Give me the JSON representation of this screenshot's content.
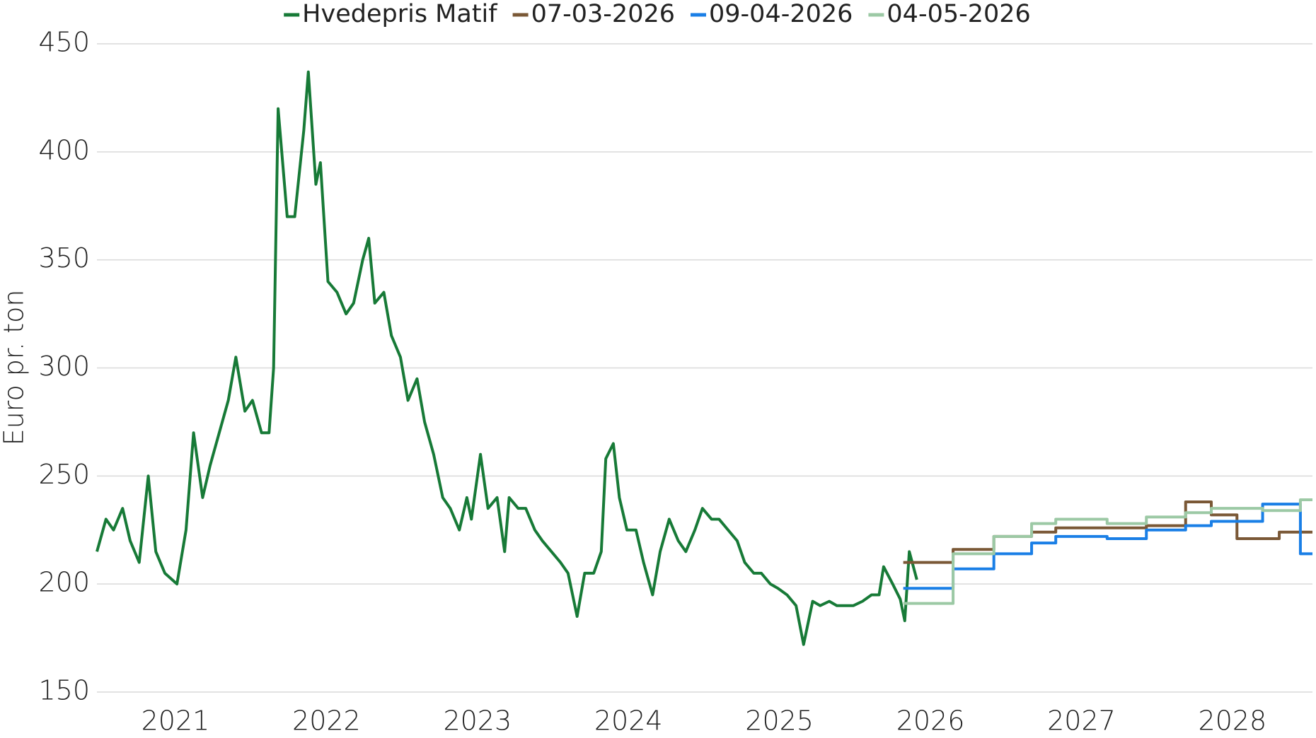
{
  "chart_data": {
    "type": "line",
    "ylabel": "Euro pr. ton",
    "xlim": [
      2020.98,
      2029.03
    ],
    "xticks": [
      {
        "value": 2021.5,
        "label": "2021"
      },
      {
        "value": 2022.5,
        "label": "2022"
      },
      {
        "value": 2023.5,
        "label": "2023"
      },
      {
        "value": 2024.5,
        "label": "2024"
      },
      {
        "value": 2025.5,
        "label": "2025"
      },
      {
        "value": 2026.5,
        "label": "2026"
      },
      {
        "value": 2027.5,
        "label": "2027"
      },
      {
        "value": 2028.5,
        "label": "2028"
      }
    ],
    "ylim": [
      150,
      450
    ],
    "yticks": [
      150,
      200,
      250,
      300,
      350,
      400,
      450
    ],
    "grid": true,
    "legend": "top",
    "series": [
      {
        "name": "Hvedepris Matif",
        "color": "#177a37",
        "x": [
          2020.98,
          2021.04,
          2021.09,
          2021.15,
          2021.2,
          2021.26,
          2021.32,
          2021.37,
          2021.43,
          2021.51,
          2021.57,
          2021.62,
          2021.68,
          2021.73,
          2021.79,
          2021.85,
          2021.9,
          2021.96,
          2022.01,
          2022.07,
          2022.12,
          2022.15,
          2022.18,
          2022.24,
          2022.29,
          2022.35,
          2022.38,
          2022.43,
          2022.46,
          2022.51,
          2022.57,
          2022.63,
          2022.68,
          2022.74,
          2022.78,
          2022.82,
          2022.88,
          2022.93,
          2022.99,
          2023.04,
          2023.1,
          2023.15,
          2023.21,
          2023.27,
          2023.32,
          2023.38,
          2023.43,
          2023.46,
          2023.52,
          2023.57,
          2023.63,
          2023.68,
          2023.71,
          2023.77,
          2023.82,
          2023.88,
          2023.93,
          2023.99,
          2024.05,
          2024.1,
          2024.16,
          2024.21,
          2024.27,
          2024.32,
          2024.35,
          2024.4,
          2024.44,
          2024.49,
          2024.55,
          2024.6,
          2024.66,
          2024.71,
          2024.77,
          2024.83,
          2024.88,
          2024.94,
          2024.99,
          2025.05,
          2025.1,
          2025.16,
          2025.22,
          2025.27,
          2025.33,
          2025.38,
          2025.44,
          2025.49,
          2025.55,
          2025.61,
          2025.66,
          2025.72,
          2025.77,
          2025.83,
          2025.88,
          2025.94,
          2025.99,
          2026.05,
          2026.11,
          2026.16,
          2026.19,
          2026.25,
          2026.3,
          2026.33,
          2026.36,
          2026.41
        ],
        "values": [
          215,
          230,
          225,
          235,
          220,
          210,
          250,
          215,
          205,
          200,
          225,
          270,
          240,
          255,
          270,
          285,
          305,
          280,
          285,
          270,
          270,
          300,
          420,
          370,
          370,
          410,
          437,
          385,
          395,
          340,
          335,
          325,
          330,
          350,
          360,
          330,
          335,
          315,
          305,
          285,
          295,
          275,
          260,
          240,
          235,
          225,
          240,
          230,
          260,
          235,
          240,
          215,
          240,
          235,
          235,
          225,
          220,
          215,
          210,
          205,
          185,
          205,
          205,
          215,
          258,
          265,
          240,
          225,
          225,
          210,
          195,
          215,
          230,
          220,
          215,
          225,
          235,
          230,
          230,
          225,
          220,
          210,
          205,
          205,
          200,
          198,
          195,
          190,
          172,
          192,
          190,
          192,
          190,
          190,
          190,
          192,
          195,
          195,
          208,
          200,
          193,
          183,
          215,
          202
        ]
      },
      {
        "name": "07-03-2026",
        "color": "#7a5836",
        "step": "post",
        "x": [
          2026.32,
          2026.65,
          2026.92,
          2027.17,
          2027.33,
          2027.67,
          2027.93,
          2028.19,
          2028.36,
          2028.53,
          2028.81,
          2029.03
        ],
        "values": [
          210,
          216,
          222,
          224,
          226,
          226,
          227,
          238,
          232,
          221,
          224,
          224
        ]
      },
      {
        "name": "09-04-2026",
        "color": "#1a7fe6",
        "step": "post",
        "x": [
          2026.32,
          2026.65,
          2026.92,
          2027.17,
          2027.33,
          2027.67,
          2027.93,
          2028.19,
          2028.36,
          2028.7,
          2028.95,
          2029.03
        ],
        "values": [
          198,
          207,
          214,
          219,
          222,
          221,
          225,
          227,
          229,
          237,
          214,
          214
        ]
      },
      {
        "name": "04-05-2026",
        "color": "#9cc9a5",
        "step": "post",
        "x": [
          2026.32,
          2026.65,
          2026.92,
          2027.17,
          2027.33,
          2027.67,
          2027.93,
          2028.19,
          2028.36,
          2028.7,
          2028.95,
          2029.03
        ],
        "values": [
          191,
          214,
          222,
          228,
          230,
          228,
          231,
          233,
          235,
          234,
          239,
          239
        ]
      }
    ]
  }
}
